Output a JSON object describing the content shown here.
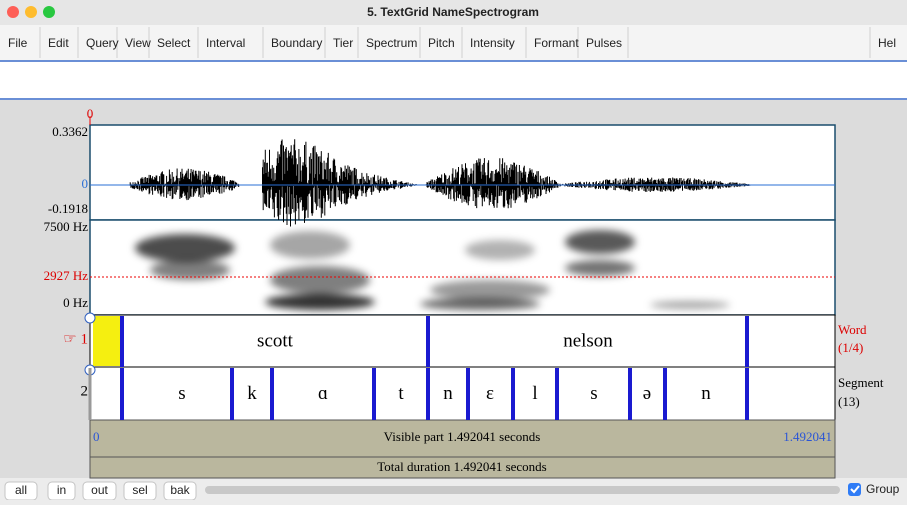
{
  "window": {
    "title": "5. TextGrid NameSpectrogram"
  },
  "menu": [
    "File",
    "Edit",
    "Query",
    "View",
    "Select",
    "Interval",
    "Boundary",
    "Tier",
    "Spectrum",
    "Pitch",
    "Intensity",
    "Formant",
    "Pulses",
    "Hel"
  ],
  "waveform": {
    "cursor": "0",
    "max": "0.3362",
    "zero": "0",
    "min": "-0.1918"
  },
  "spectrogram": {
    "top": "7500 Hz",
    "cursor": "2927 Hz",
    "bottom": "0 Hz"
  },
  "tiers": [
    {
      "number": "☞ 1",
      "name": "Word",
      "count": "(1/4)",
      "intervals": [
        "scott",
        "nelson"
      ]
    },
    {
      "number": "2",
      "name": "Segment",
      "count": "(13)",
      "intervals": [
        "s",
        "k",
        "ɑ",
        "t",
        "n",
        "ɛ",
        "l",
        "s",
        "ə",
        "n"
      ]
    }
  ],
  "visible": {
    "start": "0",
    "text": "Visible part 1.492041 seconds",
    "end": "1.492041"
  },
  "total": "Total duration 1.492041 seconds",
  "buttons": [
    "all",
    "in",
    "out",
    "sel",
    "bak"
  ],
  "group": "Group"
}
